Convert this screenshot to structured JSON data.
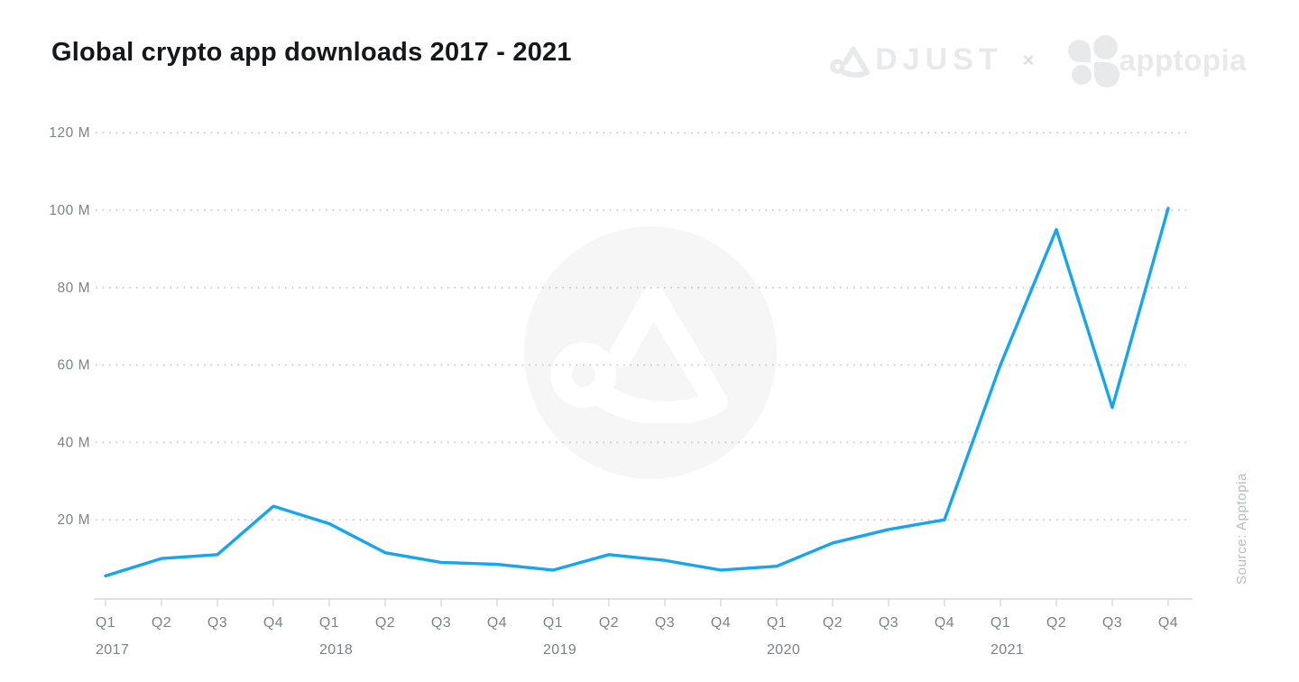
{
  "header": {
    "title": "Global crypto app downloads 2017 - 2021",
    "partners": {
      "adjust_name": "ADJUST",
      "adjust_wordmark_rest": "DJUST",
      "separator": "×",
      "apptopia_name": "apptopia"
    }
  },
  "source_note": "Source: Apptopia",
  "chart_data": {
    "type": "line",
    "title": "Global crypto app downloads 2017 - 2021",
    "unit": "millions of downloads per quarter",
    "quarters": [
      "Q1",
      "Q2",
      "Q3",
      "Q4",
      "Q1",
      "Q2",
      "Q3",
      "Q4",
      "Q1",
      "Q2",
      "Q3",
      "Q4",
      "Q1",
      "Q2",
      "Q3",
      "Q4",
      "Q1",
      "Q2",
      "Q3",
      "Q4"
    ],
    "years": [
      {
        "label": "2017",
        "quarter_index": 0
      },
      {
        "label": "2018",
        "quarter_index": 4
      },
      {
        "label": "2019",
        "quarter_index": 8
      },
      {
        "label": "2020",
        "quarter_index": 12
      },
      {
        "label": "2021",
        "quarter_index": 16
      }
    ],
    "series": [
      {
        "name": "Global crypto app downloads",
        "values_millions": [
          5.5,
          10,
          11,
          23.5,
          19,
          11.5,
          9,
          8.5,
          7,
          11,
          9.5,
          7,
          8,
          14,
          17.5,
          20,
          60,
          95,
          49,
          100.5
        ]
      }
    ],
    "yticks": [
      {
        "value": 20,
        "label": "20 M"
      },
      {
        "value": 40,
        "label": "40 M"
      },
      {
        "value": 60,
        "label": "60 M"
      },
      {
        "value": 80,
        "label": "80 M"
      },
      {
        "value": 100,
        "label": "100 M"
      },
      {
        "value": 120,
        "label": "120 M"
      }
    ],
    "ylim": [
      0,
      130
    ],
    "grid": "horizontal-dotted",
    "legend": "none",
    "line_color": "#16a5ee"
  },
  "colors": {
    "background": "#ffffff",
    "title_text": "#15181b",
    "accent_blue": "#16a5ee",
    "grid_dots": "#c6c9cd",
    "axis_line": "#d6d9dc",
    "tick_label": "#79838c",
    "logo_gray": "#e8e9eb",
    "watermark_circle": "#f6f6f7",
    "watermark_glyph": "#ffffff",
    "source_text": "#b8bdc2"
  }
}
